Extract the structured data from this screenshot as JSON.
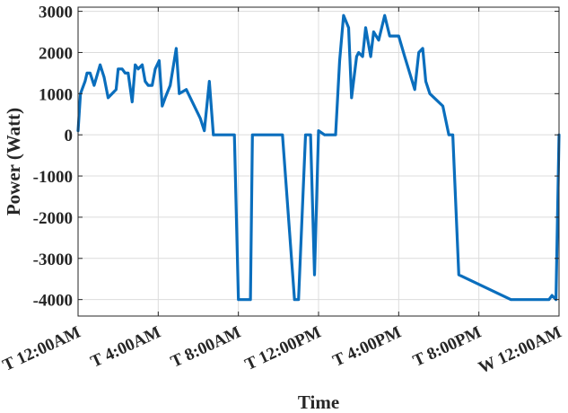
{
  "chart_data": {
    "type": "line",
    "xlabel": "Time",
    "ylabel": "Power (Watt)",
    "ylim": [
      -4400,
      3100
    ],
    "yticks": [
      -4000,
      -3000,
      -2000,
      -1000,
      0,
      1000,
      2000,
      3000
    ],
    "xlim": [
      0,
      24
    ],
    "xticks": [
      {
        "value": 0,
        "label": "T 12:00AM"
      },
      {
        "value": 4,
        "label": "T  4:00AM"
      },
      {
        "value": 8,
        "label": "T  8:00AM"
      },
      {
        "value": 12,
        "label": "T 12:00PM"
      },
      {
        "value": 16,
        "label": "T  4:00PM"
      },
      {
        "value": 20,
        "label": "T  8:00PM"
      },
      {
        "value": 24,
        "label": "W 12:00AM"
      }
    ],
    "grid": true,
    "color": "#0a6ebd",
    "series": [
      {
        "x": [
          0.0,
          0.12,
          0.35,
          0.45,
          0.6,
          0.8,
          1.1,
          1.3,
          1.5,
          1.7,
          1.9,
          2.0,
          2.2,
          2.35,
          2.5,
          2.7,
          2.85,
          3.0,
          3.2,
          3.35,
          3.5,
          3.7,
          3.85,
          4.05,
          4.2,
          4.35,
          4.6,
          4.9,
          5.05,
          5.4,
          6.1,
          6.3,
          6.55,
          6.75,
          7.8,
          8.0,
          8.6,
          8.7,
          9.1,
          9.3,
          10.0,
          10.2,
          10.8,
          11.0,
          11.35,
          11.45,
          11.6,
          11.8,
          12.0,
          12.3,
          12.5,
          12.7,
          12.85,
          13.05,
          13.25,
          13.5,
          13.65,
          13.9,
          14.0,
          14.2,
          14.35,
          14.6,
          14.75,
          15.0,
          15.3,
          15.55,
          15.8,
          16.0,
          16.3,
          16.8,
          17.0,
          17.2,
          17.35,
          17.55,
          18.2,
          18.5,
          18.7,
          19.0,
          21.6,
          23.15,
          23.3,
          23.5,
          23.65,
          23.85,
          24.0
        ],
        "y": [
          100,
          1000,
          1300,
          1500,
          1500,
          1200,
          1700,
          1400,
          900,
          1000,
          1100,
          1600,
          1600,
          1500,
          1500,
          800,
          1700,
          1600,
          1700,
          1300,
          1200,
          1200,
          1600,
          1800,
          700,
          900,
          1200,
          2100,
          1000,
          1100,
          400,
          100,
          1300,
          0,
          0,
          -4000,
          -4000,
          0,
          0,
          0,
          0,
          0,
          -4000,
          -4000,
          0,
          0,
          0,
          -3400,
          100,
          0,
          0,
          0,
          0,
          1800,
          2900,
          2600,
          900,
          1900,
          2000,
          1900,
          2600,
          1900,
          2500,
          2300,
          2900,
          2400,
          2400,
          2400,
          1900,
          1100,
          2000,
          2100,
          1300,
          1000,
          700,
          0,
          0,
          -3400,
          -4000,
          -4000,
          -4000,
          -4000,
          -3900,
          -4000,
          0
        ]
      }
    ]
  }
}
